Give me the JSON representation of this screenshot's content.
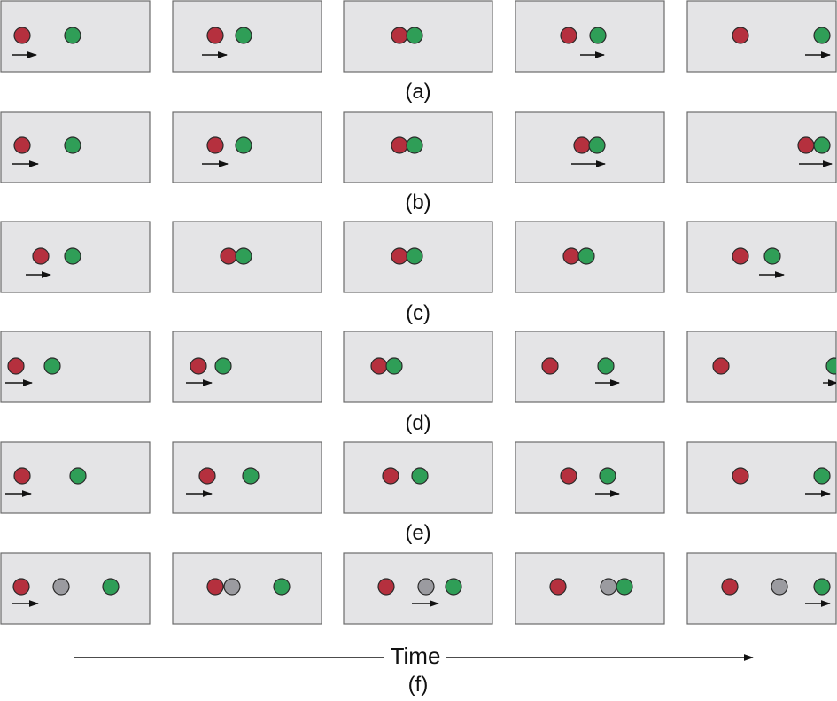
{
  "colors": {
    "red": "#b5303e",
    "green": "#2f9e57",
    "gray": "#9b9ba0",
    "panel": "#e4e4e6"
  },
  "rows": [
    {
      "label": "(a)",
      "frames": [
        {
          "balls": [
            "red",
            "green"
          ],
          "arrow": true
        },
        {
          "balls": [
            "red",
            "green"
          ],
          "arrow": true
        },
        {
          "balls": [
            "red",
            "green"
          ],
          "arrow": false
        },
        {
          "balls": [
            "red",
            "green"
          ],
          "arrow": true
        },
        {
          "balls": [
            "red",
            "green"
          ],
          "arrow": true
        }
      ]
    },
    {
      "label": "(b)",
      "frames": [
        {
          "balls": [
            "red",
            "green"
          ],
          "arrow": true
        },
        {
          "balls": [
            "red",
            "green"
          ],
          "arrow": true
        },
        {
          "balls": [
            "red",
            "green"
          ],
          "arrow": false
        },
        {
          "balls": [
            "red",
            "green"
          ],
          "arrow": true
        },
        {
          "balls": [
            "red",
            "green"
          ],
          "arrow": true
        }
      ]
    },
    {
      "label": "(c)",
      "frames": [
        {
          "balls": [
            "red",
            "green"
          ],
          "arrow": true
        },
        {
          "balls": [
            "red",
            "green"
          ],
          "arrow": false
        },
        {
          "balls": [
            "red",
            "green"
          ],
          "arrow": false
        },
        {
          "balls": [
            "red",
            "green"
          ],
          "arrow": false
        },
        {
          "balls": [
            "red",
            "green"
          ],
          "arrow": true
        }
      ]
    },
    {
      "label": "(d)",
      "frames": [
        {
          "balls": [
            "red",
            "green"
          ],
          "arrow": true
        },
        {
          "balls": [
            "red",
            "green"
          ],
          "arrow": true
        },
        {
          "balls": [
            "red",
            "green"
          ],
          "arrow": false
        },
        {
          "balls": [
            "red",
            "green"
          ],
          "arrow": true
        },
        {
          "balls": [
            "red",
            "green"
          ],
          "arrow": true
        }
      ]
    },
    {
      "label": "(e)",
      "frames": [
        {
          "balls": [
            "red",
            "green"
          ],
          "arrow": true
        },
        {
          "balls": [
            "red",
            "green"
          ],
          "arrow": true
        },
        {
          "balls": [
            "red",
            "green"
          ],
          "arrow": false
        },
        {
          "balls": [
            "red",
            "green"
          ],
          "arrow": true
        },
        {
          "balls": [
            "red",
            "green"
          ],
          "arrow": true
        }
      ]
    },
    {
      "label": "(f)",
      "frames": [
        {
          "balls": [
            "red",
            "gray",
            "green"
          ],
          "arrow": true
        },
        {
          "balls": [
            "red",
            "gray",
            "green"
          ],
          "arrow": false
        },
        {
          "balls": [
            "red",
            "gray",
            "green"
          ],
          "arrow": true
        },
        {
          "balls": [
            "red",
            "gray",
            "green"
          ],
          "arrow": false
        },
        {
          "balls": [
            "red",
            "gray",
            "green"
          ],
          "arrow": true
        }
      ]
    }
  ],
  "time_axis": {
    "label": "Time"
  }
}
